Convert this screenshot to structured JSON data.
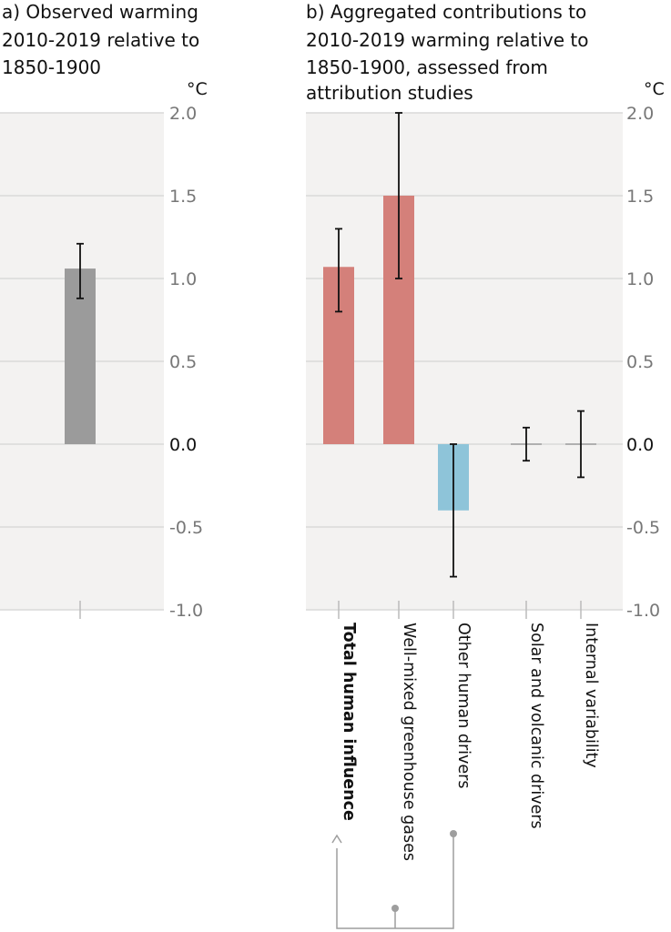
{
  "panel_a": {
    "title_lines": [
      "a) Observed warming",
      "2010-2019 relative to",
      "1850-1900"
    ]
  },
  "panel_b": {
    "title_lines": [
      "b) Aggregated contributions to",
      "2010-2019 warming relative to",
      "1850-1900, assessed from",
      "attribution studies"
    ]
  },
  "colors": {
    "panel_bg": "#f3f2f1",
    "grid": "#d9d9d9",
    "observed": "#9b9b9b",
    "human": "#d4807a",
    "other_human": "#8ec4d9",
    "natural": "#b0b0b0",
    "connector": "#9e9e9e"
  },
  "chart_data": [
    {
      "type": "bar",
      "title": "a) Observed warming 2010-2019 relative to 1850-1900",
      "unit": "°C",
      "ylim": [
        -1.0,
        2.0
      ],
      "yticks": [
        "2.0",
        "1.5",
        "1.0",
        "0.5",
        "0.0",
        "-0.5",
        "-1.0"
      ],
      "categories": [
        ""
      ],
      "values": [
        1.06
      ],
      "error_low": [
        0.88
      ],
      "error_high": [
        1.21
      ],
      "grid": true
    },
    {
      "type": "bar",
      "title": "b) Aggregated contributions to 2010-2019 warming relative to 1850-1900, assessed from attribution studies",
      "unit": "°C",
      "ylim": [
        -1.0,
        2.0
      ],
      "yticks": [
        "2.0",
        "1.5",
        "1.0",
        "0.5",
        "0.0",
        "-0.5",
        "-1.0"
      ],
      "categories": [
        "Total human influence",
        "Well-mixed greenhouse gases",
        "Other human drivers",
        "Solar and volcanic drivers",
        "Internal variability"
      ],
      "values": [
        1.07,
        1.5,
        -0.4,
        0.0,
        0.0
      ],
      "error_low": [
        0.8,
        1.0,
        -0.8,
        -0.1,
        -0.2
      ],
      "error_high": [
        1.3,
        2.0,
        0.0,
        0.1,
        0.2
      ],
      "bold_category": "Total human influence",
      "grid": true
    }
  ]
}
